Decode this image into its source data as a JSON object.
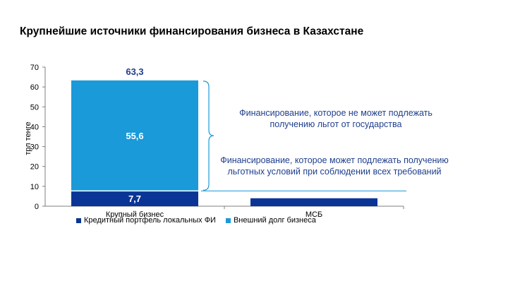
{
  "chart_data": {
    "type": "bar",
    "stacked": true,
    "title": "Крупнейшие источники финансирования бизнеса в Казахстане",
    "ylabel": "трл тенге",
    "xlabel": "",
    "ylim": [
      0,
      70
    ],
    "yticks": [
      "0",
      "10",
      "20",
      "30",
      "40",
      "50",
      "60",
      "70"
    ],
    "categories": [
      "Крупный бизнес",
      "МСБ"
    ],
    "series": [
      {
        "name": "Кредитный портфель локальных ФИ",
        "values": [
          7.7,
          4.0
        ],
        "labels": [
          "7,7",
          ""
        ],
        "color": "#0a3596"
      },
      {
        "name": "Внешний долг бизнеса",
        "values": [
          55.6,
          0
        ],
        "labels": [
          "55,6",
          ""
        ],
        "color": "#1a9ad8"
      }
    ],
    "totals": [
      "63,3",
      ""
    ],
    "legend_position": "bottom-left",
    "grid": false,
    "annotations": [
      "Финансирование, которое не может подлежать получению льгот от государства",
      "Финансирование, которое может подлежать получению льготных условий при соблюдении всех требований"
    ]
  },
  "colors": {
    "axis": "#7f7f7f",
    "annotation": "#1f3f8c",
    "total": "#1f3f8c",
    "bracket": "#1a9ad8"
  }
}
